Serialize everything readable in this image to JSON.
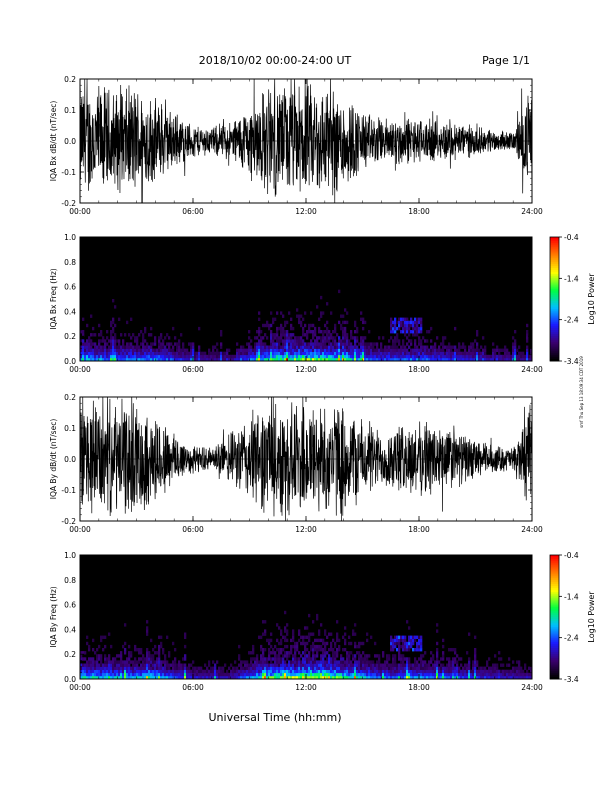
{
  "header": {
    "title": "2018/10/02   00:00-24:00 UT",
    "page": "Page 1/1"
  },
  "footer": {
    "xlabel": "Universal Time (hh:mm)",
    "side_note": "smf Thu Sep 13 18:09:34 CDT 2019"
  },
  "chart_data": [
    {
      "type": "line",
      "panel_id": "bx-dbdt",
      "ylabel": "IQA Bx dB/dt (nT/sec)",
      "xlim": [
        0,
        24
      ],
      "ylim": [
        -0.2,
        0.2
      ],
      "yticks": [
        "0.2",
        "0.1",
        "0.0",
        "-0.1",
        "-0.2"
      ],
      "xticks": [
        "00:00",
        "06:00",
        "12:00",
        "18:00",
        "24:00"
      ],
      "series": [
        {
          "color": "#000000",
          "envelope_hours": [
            0,
            1,
            2,
            3,
            4,
            5,
            6,
            7,
            8,
            9,
            10,
            11,
            12,
            13,
            14,
            15,
            16,
            17,
            18,
            19,
            20,
            21,
            22,
            23,
            24
          ],
          "envelope_amplitude": [
            0.2,
            0.2,
            0.18,
            0.2,
            0.15,
            0.1,
            0.06,
            0.05,
            0.07,
            0.13,
            0.2,
            0.2,
            0.2,
            0.2,
            0.18,
            0.11,
            0.08,
            0.09,
            0.08,
            0.07,
            0.07,
            0.05,
            0.04,
            0.03,
            0.2
          ]
        }
      ]
    },
    {
      "type": "heatmap",
      "panel_id": "bx-freq",
      "ylabel": "IQA Bx Freq (Hz)",
      "xlim": [
        0,
        24
      ],
      "ylim": [
        0,
        1.0
      ],
      "yticks": [
        "1.0",
        "0.8",
        "0.6",
        "0.4",
        "0.2",
        "0.0"
      ],
      "xticks": [
        "00:00",
        "06:00",
        "12:00",
        "18:00",
        "24:00"
      ],
      "colorbar": {
        "label": "Log10 Power",
        "min": -3.4,
        "max": -0.4,
        "ticks": [
          "-0.4",
          "-1.4",
          "-2.4",
          "-3.4"
        ],
        "colors": [
          "#000000",
          "#3b0070",
          "#1a1aff",
          "#00bfff",
          "#00ff40",
          "#ffff00",
          "#ff8000",
          "#ff0000"
        ]
      },
      "activity_hours": [
        0,
        2,
        4,
        6,
        8,
        10,
        12,
        14,
        16,
        18,
        20,
        22,
        24
      ],
      "activity_level": [
        0.6,
        0.5,
        0.55,
        0.25,
        0.2,
        0.7,
        0.9,
        0.7,
        0.4,
        0.5,
        0.35,
        0.25,
        0.2
      ]
    },
    {
      "type": "line",
      "panel_id": "by-dbdt",
      "ylabel": "IQA By dB/dt (nT/sec)",
      "xlim": [
        0,
        24
      ],
      "ylim": [
        -0.2,
        0.2
      ],
      "yticks": [
        "0.2",
        "0.1",
        "0.0",
        "-0.1",
        "-0.2"
      ],
      "xticks": [
        "00:00",
        "06:00",
        "12:00",
        "18:00",
        "24:00"
      ],
      "series": [
        {
          "color": "#000000",
          "envelope_hours": [
            0,
            1,
            2,
            3,
            4,
            5,
            6,
            7,
            8,
            9,
            10,
            11,
            12,
            13,
            14,
            15,
            16,
            17,
            18,
            19,
            20,
            21,
            22,
            23,
            24
          ],
          "envelope_amplitude": [
            0.2,
            0.2,
            0.2,
            0.2,
            0.16,
            0.1,
            0.05,
            0.04,
            0.09,
            0.16,
            0.2,
            0.2,
            0.2,
            0.2,
            0.2,
            0.14,
            0.1,
            0.12,
            0.13,
            0.13,
            0.1,
            0.07,
            0.05,
            0.04,
            0.2
          ]
        }
      ]
    },
    {
      "type": "heatmap",
      "panel_id": "by-freq",
      "ylabel": "IQA By Freq (Hz)",
      "xlim": [
        0,
        24
      ],
      "ylim": [
        0,
        1.0
      ],
      "yticks": [
        "1.0",
        "0.8",
        "0.6",
        "0.4",
        "0.2",
        "0.0"
      ],
      "xticks": [
        "00:00",
        "06:00",
        "12:00",
        "18:00",
        "24:00"
      ],
      "colorbar": {
        "label": "Log10 Power",
        "min": -3.4,
        "max": -0.4,
        "ticks": [
          "-0.4",
          "-1.4",
          "-2.4",
          "-3.4"
        ],
        "colors": [
          "#000000",
          "#3b0070",
          "#1a1aff",
          "#00bfff",
          "#00ff40",
          "#ffff00",
          "#ff8000",
          "#ff0000"
        ]
      },
      "activity_hours": [
        0,
        2,
        4,
        6,
        8,
        10,
        12,
        14,
        16,
        18,
        20,
        22,
        24
      ],
      "activity_level": [
        0.7,
        0.6,
        0.65,
        0.3,
        0.25,
        0.8,
        1.0,
        0.8,
        0.45,
        0.55,
        0.4,
        0.3,
        0.25
      ]
    }
  ]
}
